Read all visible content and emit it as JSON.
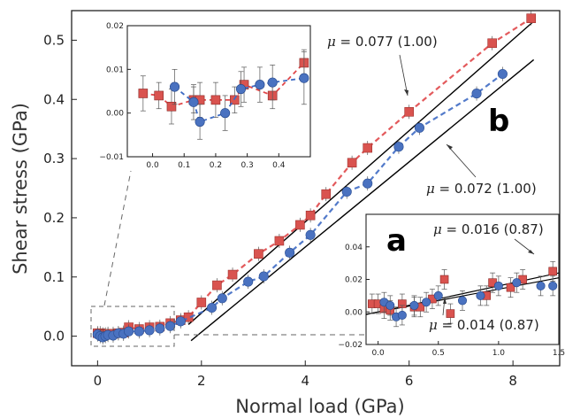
{
  "chart_data": [
    {
      "id": "main",
      "type": "scatter",
      "xlabel": "Normal load (GPa)",
      "ylabel": "Shear stress (GPa)",
      "xlim": [
        -0.5,
        8.9
      ],
      "ylim": [
        -0.05,
        0.55
      ],
      "xticks": [
        0,
        2,
        4,
        6,
        8
      ],
      "yticks": [
        0.0,
        0.1,
        0.2,
        0.3,
        0.4,
        0.5
      ],
      "ytick_labels": [
        "0.0",
        "0.1",
        "0.2",
        "0.3",
        "0.4",
        "0.5"
      ],
      "panel_label": "b",
      "series": [
        {
          "marker": "square",
          "color": "#d9534f",
          "edge": "#a02f2b",
          "line": "#e0484a",
          "points": [
            [
              0.0,
              0.005
            ],
            [
              0.05,
              0.005
            ],
            [
              0.1,
              0.003
            ],
            [
              0.15,
              0.003
            ],
            [
              0.2,
              0.004
            ],
            [
              0.3,
              0.004
            ],
            [
              0.4,
              0.005
            ],
            [
              0.5,
              0.006
            ],
            [
              0.6,
              0.015
            ],
            [
              0.8,
              0.012
            ],
            [
              1.0,
              0.015
            ],
            [
              1.2,
              0.016
            ],
            [
              1.4,
              0.022
            ],
            [
              1.6,
              0.027
            ],
            [
              1.75,
              0.032
            ],
            [
              2.0,
              0.057
            ],
            [
              2.3,
              0.086
            ],
            [
              2.6,
              0.104
            ],
            [
              3.1,
              0.139
            ],
            [
              3.5,
              0.161
            ],
            [
              3.9,
              0.188
            ],
            [
              4.1,
              0.204
            ],
            [
              4.4,
              0.24
            ],
            [
              4.9,
              0.293
            ],
            [
              5.2,
              0.318
            ],
            [
              6.0,
              0.379
            ],
            [
              7.6,
              0.495
            ],
            [
              8.35,
              0.537
            ]
          ]
        },
        {
          "marker": "circle",
          "color": "#4a72c0",
          "edge": "#2b4f95",
          "line": "#3f6cc4",
          "points": [
            [
              0.0,
              0.003
            ],
            [
              0.05,
              0.0
            ],
            [
              0.1,
              -0.002
            ],
            [
              0.15,
              0.0
            ],
            [
              0.2,
              0.002
            ],
            [
              0.3,
              0.001
            ],
            [
              0.4,
              0.005
            ],
            [
              0.5,
              0.004
            ],
            [
              0.6,
              0.008
            ],
            [
              0.8,
              0.008
            ],
            [
              1.0,
              0.01
            ],
            [
              1.2,
              0.013
            ],
            [
              1.4,
              0.017
            ],
            [
              1.6,
              0.025
            ],
            [
              2.2,
              0.048
            ],
            [
              2.4,
              0.064
            ],
            [
              2.9,
              0.092
            ],
            [
              3.2,
              0.101
            ],
            [
              3.7,
              0.141
            ],
            [
              4.1,
              0.171
            ],
            [
              4.8,
              0.244
            ],
            [
              5.2,
              0.258
            ],
            [
              5.8,
              0.32
            ],
            [
              6.2,
              0.352
            ],
            [
              7.3,
              0.41
            ],
            [
              7.8,
              0.443
            ]
          ]
        }
      ],
      "fit_lines": [
        {
          "x": [
            1.75,
            8.4
          ],
          "y": [
            0.0197,
            0.532
          ],
          "color": "#000000"
        },
        {
          "x": [
            1.8,
            8.4
          ],
          "y": [
            -0.0076,
            0.467
          ],
          "color": "#000000"
        }
      ],
      "annotations": [
        {
          "mu": "0.077",
          "value": "(1.00)"
        },
        {
          "mu": "0.072",
          "value": "(1.00)"
        }
      ]
    },
    {
      "id": "inset_top",
      "type": "scatter",
      "xlim": [
        -0.08,
        0.5
      ],
      "ylim": [
        -0.01,
        0.02
      ],
      "xticks": [
        0.0,
        0.1,
        0.2,
        0.3,
        0.4
      ],
      "xtick_labels": [
        "0.0",
        "0.1",
        "0.2",
        "0.3",
        "0.4"
      ],
      "yticks": [
        -0.01,
        0.0,
        0.01,
        0.02
      ],
      "ytick_labels": [
        "−0.01",
        "0.00",
        "0.01",
        "0.02"
      ],
      "series": [
        {
          "marker": "square",
          "color": "#d9534f",
          "points": [
            [
              -0.03,
              0.0045
            ],
            [
              0.02,
              0.004
            ],
            [
              0.06,
              0.0015
            ],
            [
              0.13,
              0.003
            ],
            [
              0.15,
              0.003
            ],
            [
              0.2,
              0.003
            ],
            [
              0.26,
              0.003
            ],
            [
              0.29,
              0.0065
            ],
            [
              0.38,
              0.004
            ],
            [
              0.48,
              0.0115
            ]
          ],
          "err": [
            0.004,
            0.003,
            0.004,
            0.003,
            0.004,
            0.004,
            0.003,
            0.004,
            0.003,
            0.003
          ]
        },
        {
          "marker": "circle",
          "color": "#4a72c0",
          "points": [
            [
              0.07,
              0.006
            ],
            [
              0.13,
              0.0025
            ],
            [
              0.15,
              -0.002
            ],
            [
              0.23,
              0.0
            ],
            [
              0.28,
              0.0055
            ],
            [
              0.34,
              0.0065
            ],
            [
              0.38,
              0.007
            ],
            [
              0.48,
              0.008
            ]
          ],
          "err": [
            0.004,
            0.004,
            0.004,
            0.004,
            0.004,
            0.004,
            0.004,
            0.006
          ]
        }
      ]
    },
    {
      "id": "inset_bottom",
      "type": "scatter",
      "xlim": [
        -0.1,
        1.5
      ],
      "ylim": [
        -0.02,
        0.06
      ],
      "xticks": [
        0.0,
        0.5,
        1.0,
        1.5
      ],
      "xtick_labels": [
        "0.0",
        "0.5",
        "1.0",
        "1.5"
      ],
      "yticks": [
        -0.02,
        0.0,
        0.02,
        0.04
      ],
      "ytick_labels": [
        "−0.02",
        "0.00",
        "0.02",
        "0.04"
      ],
      "panel_label": "a",
      "series": [
        {
          "marker": "square",
          "color": "#d9534f",
          "points": [
            [
              -0.05,
              0.005
            ],
            [
              0.0,
              0.005
            ],
            [
              0.05,
              0.002
            ],
            [
              0.1,
              0.001
            ],
            [
              0.2,
              0.005
            ],
            [
              0.3,
              0.003
            ],
            [
              0.35,
              0.003
            ],
            [
              0.45,
              0.008
            ],
            [
              0.55,
              0.02
            ],
            [
              0.6,
              -0.001
            ],
            [
              0.9,
              0.01
            ],
            [
              0.95,
              0.018
            ],
            [
              1.1,
              0.015
            ],
            [
              1.2,
              0.02
            ],
            [
              1.45,
              0.025
            ]
          ]
        },
        {
          "marker": "circle",
          "color": "#4a72c0",
          "points": [
            [
              0.05,
              0.006
            ],
            [
              0.1,
              0.004
            ],
            [
              0.15,
              -0.003
            ],
            [
              0.2,
              -0.002
            ],
            [
              0.3,
              0.004
            ],
            [
              0.4,
              0.006
            ],
            [
              0.5,
              0.01
            ],
            [
              0.7,
              0.007
            ],
            [
              0.85,
              0.01
            ],
            [
              1.0,
              0.016
            ],
            [
              1.15,
              0.018
            ],
            [
              1.35,
              0.016
            ],
            [
              1.45,
              0.016
            ]
          ]
        }
      ],
      "fit_lines": [
        {
          "x": [
            -0.1,
            1.5
          ],
          "y": [
            -0.0016,
            0.024
          ],
          "color": "#000000"
        },
        {
          "x": [
            -0.1,
            1.5
          ],
          "y": [
            -0.0014,
            0.021
          ],
          "color": "#000000"
        }
      ],
      "annotations": [
        {
          "mu": "0.016",
          "value": "(0.87)"
        },
        {
          "mu": "0.014",
          "value": "(0.87)"
        }
      ]
    }
  ]
}
